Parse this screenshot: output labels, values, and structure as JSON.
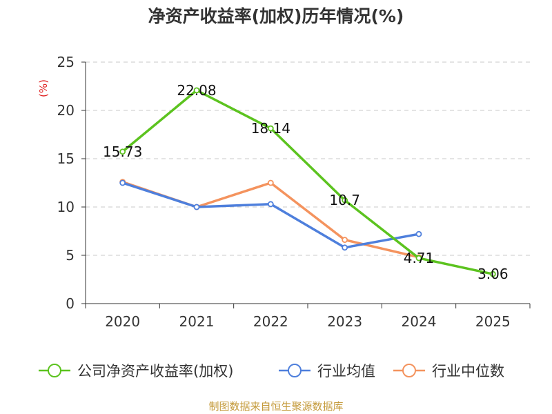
{
  "chart_data": {
    "type": "line",
    "title": "净资产收益率(加权)历年情况(%)",
    "ylabel": "(%)",
    "xlabel": "",
    "categories": [
      "2020",
      "2021",
      "2022",
      "2023",
      "2024",
      "2025"
    ],
    "ylim": [
      0,
      25
    ],
    "yticks": [
      0,
      5,
      10,
      15,
      20,
      25
    ],
    "grid": true,
    "legend_position": "bottom",
    "series": [
      {
        "name": "公司净资产收益率(加权)",
        "color": "#5cc31f",
        "values": [
          15.73,
          22.08,
          18.14,
          10.7,
          4.71,
          3.06
        ],
        "labels": [
          "15.73",
          "22.08",
          "18.14",
          "10.7",
          "4.71",
          "3.06"
        ]
      },
      {
        "name": "行业均值",
        "color": "#4e7fdc",
        "values": [
          12.5,
          10.0,
          10.3,
          5.8,
          7.2,
          null
        ]
      },
      {
        "name": "行业中位数",
        "color": "#f4935e",
        "values": [
          12.6,
          10.0,
          12.5,
          6.6,
          4.8,
          null
        ]
      }
    ]
  },
  "footer": "制图数据来自恒生聚源数据库"
}
